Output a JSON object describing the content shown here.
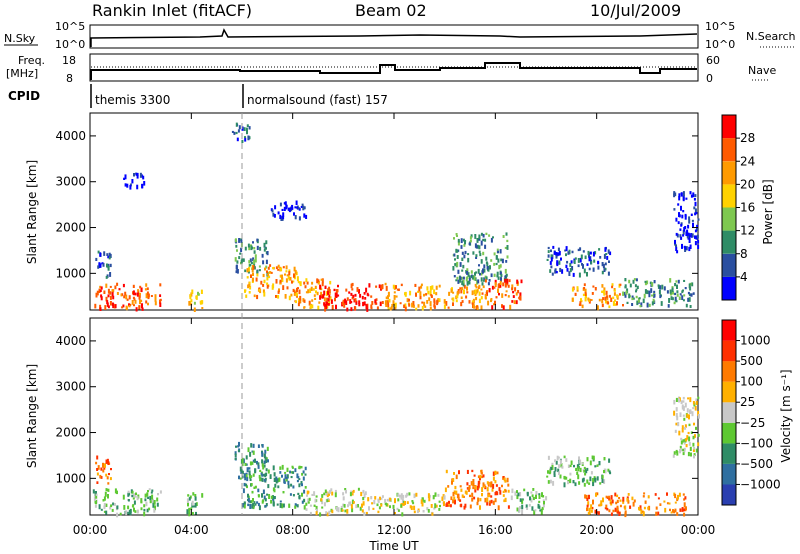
{
  "header": {
    "station": "Rankin Inlet (fitACF)",
    "beam": "Beam 02",
    "date": "10/Jul/2009"
  },
  "status_panels": {
    "nsky_label": "N.Sky",
    "nsky_ticks": [
      "10^5",
      "10^0"
    ],
    "nsearch_label": "N.Search",
    "nsearch_ticks": [
      "10^5",
      "10^0"
    ],
    "freq_label_line1": "Freq.",
    "freq_label_line2": "[MHz]",
    "freq_ticks": [
      "18",
      "8"
    ],
    "nave_label": "Nave",
    "nave_ticks": [
      "60",
      "0"
    ],
    "cpid_label": "CPID",
    "cpid_modes": [
      {
        "name": "themis 3300",
        "start_hour": 0
      },
      {
        "name": "normalsound (fast) 157",
        "start_hour": 6
      }
    ]
  },
  "x_axis": {
    "label": "Time UT",
    "ticks": [
      "00:00",
      "04:00",
      "08:00",
      "12:00",
      "16:00",
      "20:00",
      "00:00"
    ],
    "range_hours": [
      0,
      24
    ]
  },
  "chart_data": [
    {
      "type": "heatmap",
      "panel": "power",
      "ylabel": "Slant Range [km]",
      "yticks": [
        "1000",
        "2000",
        "3000",
        "4000"
      ],
      "ylim": [
        200,
        4500
      ],
      "xlim_hours": [
        0,
        24
      ],
      "colorbar": {
        "label": "Power [dB]",
        "ticks": [
          "4",
          "8",
          "12",
          "16",
          "20",
          "24",
          "28"
        ],
        "colors": [
          "#0000ff",
          "#2a4fa0",
          "#2f8c66",
          "#7ec850",
          "#ffd200",
          "#ff9a00",
          "#ff5a00",
          "#ff0000"
        ]
      },
      "regions": [
        {
          "t": [
            0.1,
            2.8
          ],
          "r": [
            250,
            800
          ],
          "level": 6
        },
        {
          "t": [
            0.2,
            0.8
          ],
          "r": [
            900,
            1500
          ],
          "level": 1
        },
        {
          "t": [
            1.3,
            2.2
          ],
          "r": [
            2900,
            3200
          ],
          "level": 0
        },
        {
          "t": [
            3.8,
            4.4
          ],
          "r": [
            250,
            700
          ],
          "level": 4
        },
        {
          "t": [
            5.6,
            6.3
          ],
          "r": [
            3900,
            4300
          ],
          "level": 1
        },
        {
          "t": [
            5.7,
            7.0
          ],
          "r": [
            1000,
            1800
          ],
          "level": 2
        },
        {
          "t": [
            6.0,
            8.2
          ],
          "r": [
            500,
            1200
          ],
          "level": 5
        },
        {
          "t": [
            7.0,
            8.5
          ],
          "r": [
            2200,
            2600
          ],
          "level": 0
        },
        {
          "t": [
            8.0,
            9.5
          ],
          "r": [
            250,
            900
          ],
          "level": 5
        },
        {
          "t": [
            9.0,
            11.5
          ],
          "r": [
            250,
            800
          ],
          "level": 7
        },
        {
          "t": [
            11.5,
            13.5
          ],
          "r": [
            250,
            800
          ],
          "level": 5
        },
        {
          "t": [
            13.5,
            15.5
          ],
          "r": [
            250,
            800
          ],
          "level": 5
        },
        {
          "t": [
            14.3,
            16.5
          ],
          "r": [
            800,
            1900
          ],
          "level": 2
        },
        {
          "t": [
            15.5,
            17.0
          ],
          "r": [
            300,
            900
          ],
          "level": 6
        },
        {
          "t": [
            18.0,
            20.5
          ],
          "r": [
            1000,
            1600
          ],
          "level": 1
        },
        {
          "t": [
            19.0,
            21.0
          ],
          "r": [
            300,
            800
          ],
          "level": 5
        },
        {
          "t": [
            21.0,
            23.8
          ],
          "r": [
            300,
            900
          ],
          "level": 2
        },
        {
          "t": [
            23.0,
            24.0
          ],
          "r": [
            1500,
            2800
          ],
          "level": 0
        }
      ]
    },
    {
      "type": "heatmap",
      "panel": "velocity",
      "ylabel": "Slant Range [km]",
      "yticks": [
        "1000",
        "2000",
        "3000",
        "4000"
      ],
      "ylim": [
        200,
        4500
      ],
      "xlim_hours": [
        0,
        24
      ],
      "colorbar": {
        "label": "Velocity [m s⁻¹]",
        "ticks": [
          "1000",
          "500",
          "100",
          "25",
          "−25",
          "−100",
          "−500",
          "−1000"
        ],
        "colors": [
          "#2a3fb0",
          "#2f6fa0",
          "#2f8c66",
          "#5ec832",
          "#c8c8c8",
          "#ffb000",
          "#ff7a00",
          "#ff3000",
          "#ff0000"
        ]
      },
      "regions": [
        {
          "t": [
            0.1,
            2.8
          ],
          "r": [
            250,
            800
          ],
          "level": 3
        },
        {
          "t": [
            0.2,
            0.8
          ],
          "r": [
            900,
            1500
          ],
          "level": 6
        },
        {
          "t": [
            3.8,
            4.4
          ],
          "r": [
            250,
            700
          ],
          "level": 3
        },
        {
          "t": [
            5.7,
            7.0
          ],
          "r": [
            1000,
            1800
          ],
          "level": 2
        },
        {
          "t": [
            6.0,
            8.5
          ],
          "r": [
            400,
            1300
          ],
          "level": 2
        },
        {
          "t": [
            8.5,
            11.0
          ],
          "r": [
            250,
            800
          ],
          "level": 4
        },
        {
          "t": [
            11.0,
            14.0
          ],
          "r": [
            250,
            700
          ],
          "level": 4
        },
        {
          "t": [
            14.0,
            16.5
          ],
          "r": [
            400,
            1200
          ],
          "level": 6
        },
        {
          "t": [
            16.5,
            18.0
          ],
          "r": [
            300,
            800
          ],
          "level": 3
        },
        {
          "t": [
            18.0,
            20.5
          ],
          "r": [
            900,
            1500
          ],
          "level": 3
        },
        {
          "t": [
            19.5,
            23.5
          ],
          "r": [
            250,
            700
          ],
          "level": 6
        },
        {
          "t": [
            23.0,
            24.0
          ],
          "r": [
            1500,
            2800
          ],
          "level": 4
        }
      ]
    }
  ]
}
